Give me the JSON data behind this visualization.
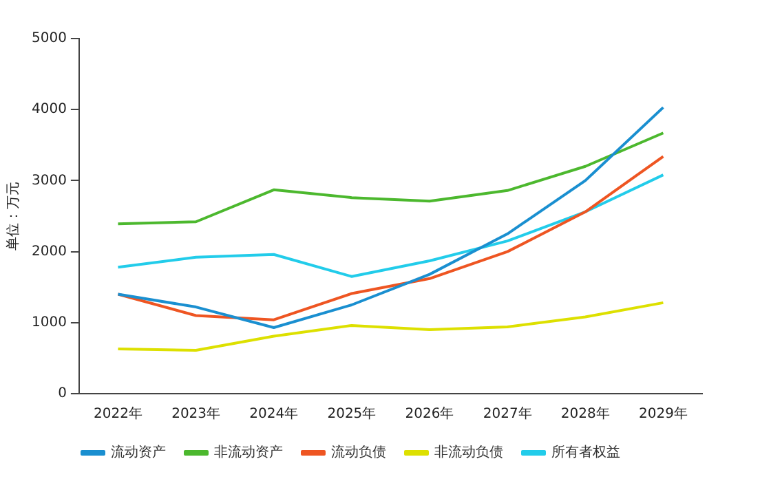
{
  "chart_data": {
    "type": "line",
    "ylabel": "单位：万元",
    "categories": [
      "2022年",
      "2023年",
      "2024年",
      "2025年",
      "2026年",
      "2027年",
      "2028年",
      "2029年"
    ],
    "series": [
      {
        "name": "流动资产",
        "color": "#1a8fd0",
        "values": [
          1400,
          1220,
          930,
          1250,
          1680,
          2250,
          3000,
          4030
        ]
      },
      {
        "name": "非流动资产",
        "color": "#4cb82e",
        "values": [
          2390,
          2420,
          2870,
          2760,
          2710,
          2860,
          3200,
          3670
        ]
      },
      {
        "name": "流动负债",
        "color": "#ee5522",
        "values": [
          1400,
          1100,
          1040,
          1410,
          1620,
          2000,
          2560,
          3340
        ]
      },
      {
        "name": "非流动负债",
        "color": "#dde000",
        "values": [
          630,
          610,
          810,
          960,
          900,
          940,
          1080,
          1280
        ]
      },
      {
        "name": "所有者权益",
        "color": "#22ccea",
        "values": [
          1780,
          1920,
          1960,
          1650,
          1870,
          2150,
          2560,
          3080
        ]
      }
    ],
    "ylim": [
      0,
      5000
    ],
    "yticks": [
      0,
      1000,
      2000,
      3000,
      4000,
      5000
    ],
    "grid": false,
    "legend": "bottom",
    "marker": "none",
    "line_style": "solid"
  }
}
